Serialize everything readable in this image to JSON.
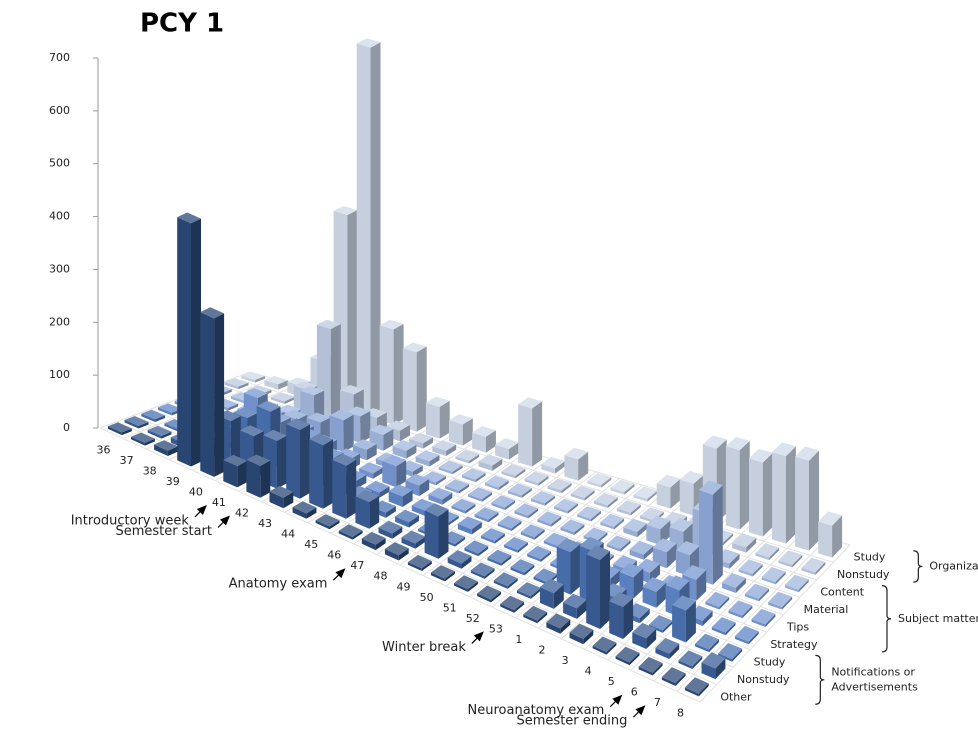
{
  "chart_data": {
    "type": "bar3d",
    "title": "PCY 1",
    "categories": [
      "36",
      "37",
      "38",
      "39",
      "40",
      "41",
      "42",
      "43",
      "44",
      "45",
      "46",
      "47",
      "48",
      "49",
      "50",
      "51",
      "52",
      "53",
      "1",
      "2",
      "3",
      "4",
      "5",
      "6",
      "7",
      "8"
    ],
    "ylim": [
      0,
      700
    ],
    "yticks": [
      0,
      100,
      200,
      300,
      400,
      500,
      600,
      700
    ],
    "groups": [
      {
        "label": [
          "Organization"
        ],
        "series": [
          {
            "name": "Study",
            "color": "#cfdaea",
            "values": [
              5,
              10,
              20,
              80,
              370,
              700,
              180,
              150,
              60,
              40,
              30,
              20,
              110,
              10,
              40,
              5,
              5,
              5,
              40,
              60,
              140,
              150,
              140,
              165,
              170,
              60
            ]
          },
          {
            "name": "Nonstudy",
            "color": "#bccae0",
            "values": [
              5,
              5,
              5,
              40,
              170,
              60,
              30,
              20,
              10,
              10,
              5,
              10,
              5,
              5,
              5,
              5,
              5,
              5,
              5,
              10,
              20,
              5,
              10,
              5,
              5,
              5
            ]
          }
        ]
      },
      {
        "label": [
          "Subject matter"
        ],
        "series": [
          {
            "name": "Content",
            "color": "#a2b8de",
            "values": [
              5,
              5,
              5,
              10,
              60,
              20,
              50,
              30,
              15,
              10,
              5,
              5,
              5,
              5,
              5,
              5,
              5,
              5,
              10,
              30,
              40,
              90,
              10,
              5,
              5,
              5
            ]
          },
          {
            "name": "Material",
            "color": "#8ea8d8",
            "values": [
              5,
              5,
              10,
              20,
              30,
              40,
              60,
              20,
              10,
              10,
              5,
              5,
              5,
              5,
              5,
              5,
              5,
              5,
              5,
              10,
              30,
              40,
              170,
              10,
              5,
              5
            ]
          },
          {
            "name": "Tips",
            "color": "#7797d2",
            "values": [
              5,
              5,
              5,
              70,
              40,
              40,
              30,
              20,
              10,
              40,
              20,
              10,
              5,
              5,
              5,
              5,
              5,
              5,
              5,
              10,
              20,
              5,
              40,
              5,
              5,
              5
            ]
          },
          {
            "name": "Strategy",
            "color": "#5f86c8",
            "values": [
              5,
              5,
              10,
              15,
              30,
              20,
              60,
              40,
              15,
              10,
              20,
              10,
              5,
              10,
              5,
              5,
              5,
              5,
              10,
              20,
              40,
              30,
              50,
              10,
              5,
              5
            ]
          }
        ]
      },
      {
        "label": [
          "Notifications or",
          "Advertisements"
        ],
        "series": [
          {
            "name": "Study",
            "color": "#4a72b2",
            "values": [
              5,
              5,
              5,
              10,
              80,
              110,
              60,
              70,
              40,
              20,
              10,
              10,
              5,
              5,
              5,
              5,
              5,
              5,
              80,
              100,
              30,
              10,
              5,
              60,
              5,
              5
            ]
          },
          {
            "name": "Nonstudy",
            "color": "#3a5e96",
            "values": [
              5,
              5,
              10,
              20,
              90,
              80,
              90,
              130,
              120,
              100,
              50,
              10,
              10,
              80,
              10,
              5,
              5,
              5,
              30,
              20,
              130,
              60,
              20,
              10,
              5,
              20
            ]
          },
          {
            "name": "Other",
            "color": "#2b4a78",
            "values": [
              5,
              5,
              10,
              460,
              300,
              40,
              60,
              20,
              10,
              5,
              5,
              10,
              10,
              5,
              5,
              5,
              5,
              5,
              5,
              10,
              10,
              5,
              5,
              5,
              5,
              5
            ]
          }
        ]
      }
    ],
    "annotations": [
      {
        "text": "Introductory week",
        "at": "41"
      },
      {
        "text": "Semester start",
        "at": "42"
      },
      {
        "text": "Anatomy exam",
        "at": "47"
      },
      {
        "text": "Winter break",
        "at": "53"
      },
      {
        "text": "Neuroanatomy exam",
        "at": "6"
      },
      {
        "text": "Semester ending",
        "at": "7"
      }
    ]
  }
}
